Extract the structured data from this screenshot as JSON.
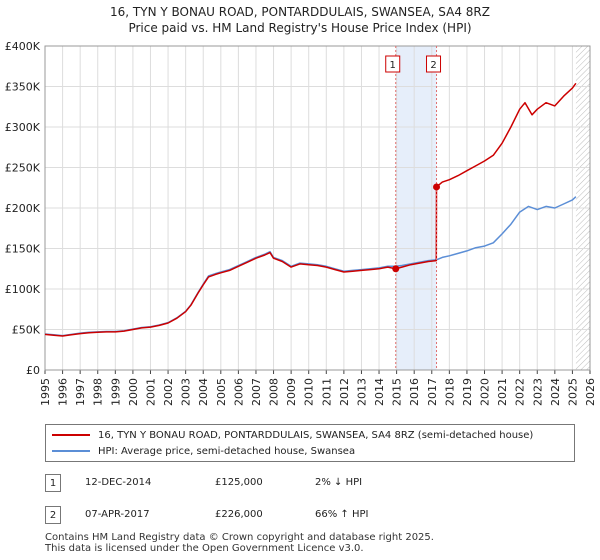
{
  "header": {
    "title": "16, TYN Y BONAU ROAD, PONTARDDULAIS, SWANSEA, SA4 8RZ",
    "subtitle": "Price paid vs. HM Land Registry's House Price Index (HPI)"
  },
  "colors": {
    "red": "#cc0000",
    "blue": "#5b8ed6",
    "shade": "#e6eefa",
    "grid": "#dddddd"
  },
  "chart_data": {
    "type": "line",
    "title": "Price paid vs. HM Land Registry's House Price Index (HPI)",
    "xlabel": "",
    "ylabel": "",
    "xlim": [
      1995,
      2026
    ],
    "ylim": [
      0,
      400000
    ],
    "ytick_values": [
      0,
      50000,
      100000,
      150000,
      200000,
      250000,
      300000,
      350000,
      400000
    ],
    "ytick_labels": [
      "£0",
      "£50K",
      "£100K",
      "£150K",
      "£200K",
      "£250K",
      "£300K",
      "£350K",
      "£400K"
    ],
    "xtick_labels": [
      "1995",
      "1996",
      "1997",
      "1998",
      "1999",
      "2000",
      "2001",
      "2002",
      "2003",
      "2004",
      "2005",
      "2006",
      "2007",
      "2008",
      "2009",
      "2010",
      "2011",
      "2012",
      "2013",
      "2014",
      "2015",
      "2016",
      "2017",
      "2018",
      "2019",
      "2020",
      "2021",
      "2022",
      "2023",
      "2024",
      "2025",
      "2026"
    ],
    "shaded_region": [
      2014.95,
      2017.27
    ],
    "future_hatch_start": 2025.2,
    "series": [
      {
        "name": "16, TYN Y BONAU ROAD, PONTARDDULAIS, SWANSEA, SA4 8RZ (semi-detached house)",
        "color": "#cc0000",
        "points": [
          [
            1995.0,
            44000
          ],
          [
            1995.5,
            43000
          ],
          [
            1996.0,
            42000
          ],
          [
            1996.5,
            43500
          ],
          [
            1997.0,
            45000
          ],
          [
            1997.5,
            46000
          ],
          [
            1998.0,
            46500
          ],
          [
            1998.5,
            47000
          ],
          [
            1999.0,
            47000
          ],
          [
            1999.5,
            48000
          ],
          [
            2000.0,
            50000
          ],
          [
            2000.5,
            52000
          ],
          [
            2001.0,
            53000
          ],
          [
            2001.5,
            55000
          ],
          [
            2002.0,
            58000
          ],
          [
            2002.5,
            64000
          ],
          [
            2003.0,
            72000
          ],
          [
            2003.3,
            80000
          ],
          [
            2003.7,
            95000
          ],
          [
            2004.0,
            105000
          ],
          [
            2004.3,
            115000
          ],
          [
            2004.7,
            118000
          ],
          [
            2005.0,
            120000
          ],
          [
            2005.5,
            123000
          ],
          [
            2006.0,
            128000
          ],
          [
            2006.5,
            133000
          ],
          [
            2007.0,
            138000
          ],
          [
            2007.5,
            142000
          ],
          [
            2007.8,
            145000
          ],
          [
            2008.0,
            138000
          ],
          [
            2008.5,
            134000
          ],
          [
            2009.0,
            127000
          ],
          [
            2009.5,
            131000
          ],
          [
            2010.0,
            130000
          ],
          [
            2010.5,
            129000
          ],
          [
            2011.0,
            127000
          ],
          [
            2011.5,
            124000
          ],
          [
            2012.0,
            121000
          ],
          [
            2012.5,
            122000
          ],
          [
            2013.0,
            123000
          ],
          [
            2013.5,
            124000
          ],
          [
            2014.0,
            125000
          ],
          [
            2014.5,
            127000
          ],
          [
            2014.95,
            125000
          ],
          [
            2015.3,
            127000
          ],
          [
            2015.8,
            130000
          ],
          [
            2016.3,
            132000
          ],
          [
            2016.8,
            134000
          ],
          [
            2017.26,
            135000
          ],
          [
            2017.27,
            226000
          ],
          [
            2017.6,
            232000
          ],
          [
            2018.0,
            235000
          ],
          [
            2018.5,
            240000
          ],
          [
            2019.0,
            246000
          ],
          [
            2019.5,
            252000
          ],
          [
            2020.0,
            258000
          ],
          [
            2020.5,
            265000
          ],
          [
            2021.0,
            280000
          ],
          [
            2021.5,
            300000
          ],
          [
            2022.0,
            322000
          ],
          [
            2022.3,
            330000
          ],
          [
            2022.7,
            315000
          ],
          [
            2023.0,
            322000
          ],
          [
            2023.5,
            330000
          ],
          [
            2024.0,
            326000
          ],
          [
            2024.5,
            338000
          ],
          [
            2025.0,
            348000
          ],
          [
            2025.2,
            354000
          ]
        ]
      },
      {
        "name": "HPI: Average price, semi-detached house, Swansea",
        "color": "#5b8ed6",
        "points": [
          [
            1995.0,
            44500
          ],
          [
            1995.5,
            43500
          ],
          [
            1996.0,
            42500
          ],
          [
            1996.5,
            44000
          ],
          [
            1997.0,
            45500
          ],
          [
            1997.5,
            46500
          ],
          [
            1998.0,
            47000
          ],
          [
            1998.5,
            47500
          ],
          [
            1999.0,
            47500
          ],
          [
            1999.5,
            48500
          ],
          [
            2000.0,
            50500
          ],
          [
            2000.5,
            52500
          ],
          [
            2001.0,
            53500
          ],
          [
            2001.5,
            55500
          ],
          [
            2002.0,
            58500
          ],
          [
            2002.5,
            64500
          ],
          [
            2003.0,
            72500
          ],
          [
            2003.3,
            80500
          ],
          [
            2003.7,
            95500
          ],
          [
            2004.0,
            106000
          ],
          [
            2004.3,
            116000
          ],
          [
            2004.7,
            119000
          ],
          [
            2005.0,
            121000
          ],
          [
            2005.5,
            124000
          ],
          [
            2006.0,
            129000
          ],
          [
            2006.5,
            134000
          ],
          [
            2007.0,
            139000
          ],
          [
            2007.5,
            143000
          ],
          [
            2007.8,
            146000
          ],
          [
            2008.0,
            139000
          ],
          [
            2008.5,
            135000
          ],
          [
            2009.0,
            128000
          ],
          [
            2009.5,
            132000
          ],
          [
            2010.0,
            131000
          ],
          [
            2010.5,
            130000
          ],
          [
            2011.0,
            128000
          ],
          [
            2011.5,
            125000
          ],
          [
            2012.0,
            122000
          ],
          [
            2012.5,
            123000
          ],
          [
            2013.0,
            124000
          ],
          [
            2013.5,
            125000
          ],
          [
            2014.0,
            126000
          ],
          [
            2014.5,
            128000
          ],
          [
            2014.95,
            128000
          ],
          [
            2015.3,
            129000
          ],
          [
            2015.8,
            131000
          ],
          [
            2016.3,
            133000
          ],
          [
            2016.8,
            135000
          ],
          [
            2017.27,
            136000
          ],
          [
            2017.6,
            139000
          ],
          [
            2018.0,
            141000
          ],
          [
            2018.5,
            144000
          ],
          [
            2019.0,
            147000
          ],
          [
            2019.5,
            151000
          ],
          [
            2020.0,
            153000
          ],
          [
            2020.5,
            157000
          ],
          [
            2021.0,
            168000
          ],
          [
            2021.5,
            180000
          ],
          [
            2022.0,
            195000
          ],
          [
            2022.5,
            202000
          ],
          [
            2023.0,
            198000
          ],
          [
            2023.5,
            202000
          ],
          [
            2024.0,
            200000
          ],
          [
            2024.5,
            205000
          ],
          [
            2025.0,
            210000
          ],
          [
            2025.2,
            214000
          ]
        ]
      }
    ],
    "sales": [
      {
        "label": "1",
        "x": 2014.95,
        "price": 125000
      },
      {
        "label": "2",
        "x": 2017.27,
        "price": 226000
      }
    ]
  },
  "legend": {
    "items": [
      {
        "label": "16, TYN Y BONAU ROAD, PONTARDDULAIS, SWANSEA, SA4 8RZ (semi-detached house)",
        "color": "#cc0000"
      },
      {
        "label": "HPI: Average price, semi-detached house, Swansea",
        "color": "#5b8ed6"
      }
    ]
  },
  "transactions": [
    {
      "num": "1",
      "date": "12-DEC-2014",
      "price": "£125,000",
      "diff": "2% ↓ HPI"
    },
    {
      "num": "2",
      "date": "07-APR-2017",
      "price": "£226,000",
      "diff": "66% ↑ HPI"
    }
  ],
  "footer": {
    "line1": "Contains HM Land Registry data © Crown copyright and database right 2025.",
    "line2": "This data is licensed under the Open Government Licence v3.0."
  }
}
